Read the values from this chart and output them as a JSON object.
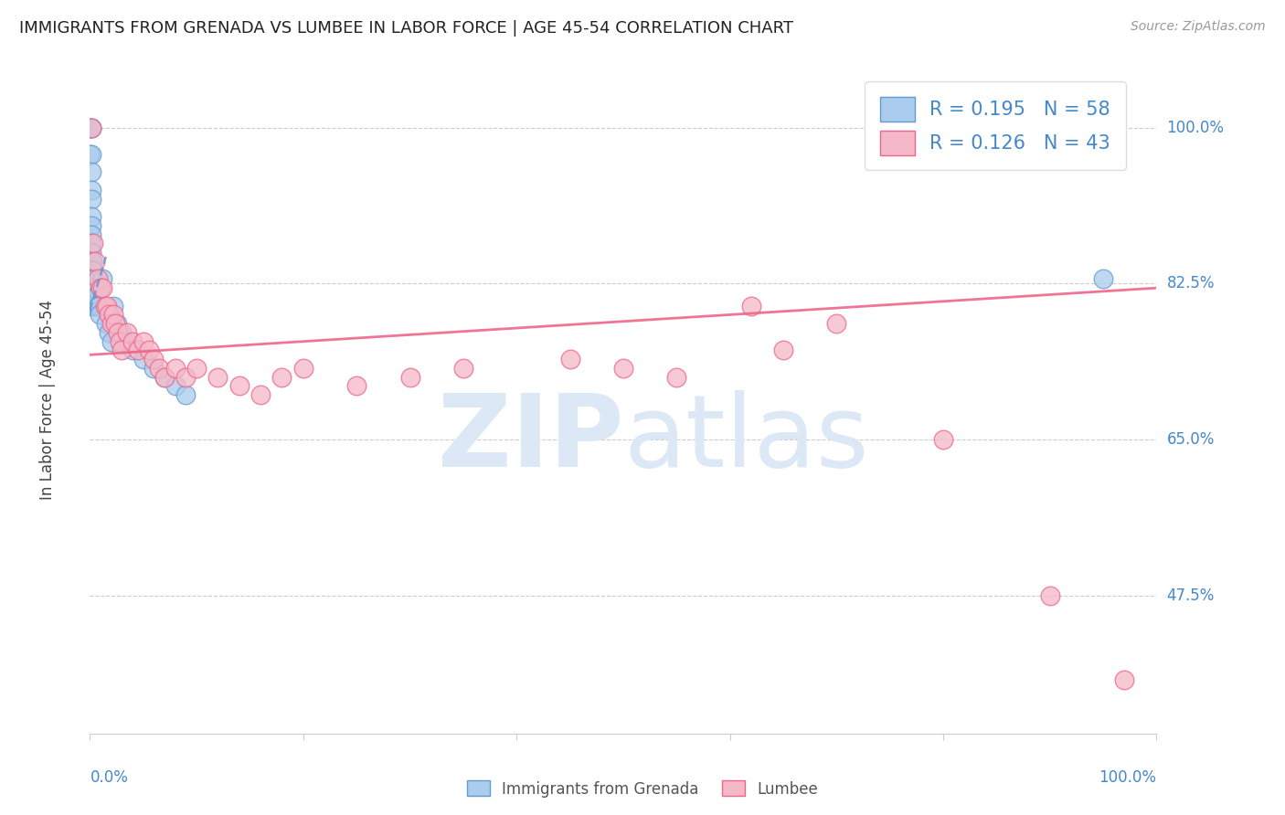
{
  "title": "IMMIGRANTS FROM GRENADA VS LUMBEE IN LABOR FORCE | AGE 45-54 CORRELATION CHART",
  "source": "Source: ZipAtlas.com",
  "ylabel": "In Labor Force | Age 45-54",
  "legend_entries": [
    {
      "label": "R = 0.195   N = 58",
      "color": "#a8c4f0"
    },
    {
      "label": "R = 0.126   N = 43",
      "color": "#f0a0b8"
    }
  ],
  "blue_scatter_x": [
    0.0,
    0.0,
    0.001,
    0.001,
    0.001,
    0.001,
    0.001,
    0.001,
    0.001,
    0.001,
    0.001,
    0.001,
    0.001,
    0.001,
    0.001,
    0.001,
    0.001,
    0.001,
    0.001,
    0.001,
    0.001,
    0.001,
    0.001,
    0.001,
    0.001,
    0.001,
    0.002,
    0.002,
    0.002,
    0.002,
    0.002,
    0.003,
    0.003,
    0.003,
    0.004,
    0.004,
    0.005,
    0.005,
    0.006,
    0.007,
    0.008,
    0.009,
    0.01,
    0.012,
    0.015,
    0.018,
    0.02,
    0.022,
    0.025,
    0.03,
    0.035,
    0.04,
    0.05,
    0.06,
    0.07,
    0.08,
    0.09,
    0.95
  ],
  "blue_scatter_y": [
    1.0,
    0.97,
    1.0,
    1.0,
    0.97,
    0.95,
    0.93,
    0.92,
    0.9,
    0.89,
    0.88,
    0.87,
    0.86,
    0.85,
    0.85,
    0.84,
    0.84,
    0.83,
    0.83,
    0.83,
    0.82,
    0.82,
    0.82,
    0.81,
    0.81,
    0.8,
    0.85,
    0.84,
    0.83,
    0.82,
    0.81,
    0.84,
    0.83,
    0.82,
    0.83,
    0.81,
    0.82,
    0.8,
    0.81,
    0.8,
    0.8,
    0.79,
    0.82,
    0.83,
    0.78,
    0.77,
    0.76,
    0.8,
    0.78,
    0.77,
    0.76,
    0.75,
    0.74,
    0.73,
    0.72,
    0.71,
    0.7,
    0.83
  ],
  "blue_line_x": [
    0.0,
    0.015
  ],
  "blue_line_y": [
    0.795,
    0.855
  ],
  "pink_scatter_x": [
    0.001,
    0.003,
    0.005,
    0.007,
    0.01,
    0.012,
    0.014,
    0.016,
    0.018,
    0.02,
    0.022,
    0.024,
    0.026,
    0.028,
    0.03,
    0.035,
    0.04,
    0.045,
    0.05,
    0.055,
    0.06,
    0.065,
    0.07,
    0.08,
    0.09,
    0.1,
    0.12,
    0.14,
    0.16,
    0.18,
    0.2,
    0.25,
    0.3,
    0.35,
    0.45,
    0.5,
    0.55,
    0.62,
    0.65,
    0.7,
    0.8,
    0.9,
    0.97
  ],
  "pink_scatter_y": [
    1.0,
    0.87,
    0.85,
    0.83,
    0.82,
    0.82,
    0.8,
    0.8,
    0.79,
    0.78,
    0.79,
    0.78,
    0.77,
    0.76,
    0.75,
    0.77,
    0.76,
    0.75,
    0.76,
    0.75,
    0.74,
    0.73,
    0.72,
    0.73,
    0.72,
    0.73,
    0.72,
    0.71,
    0.7,
    0.72,
    0.73,
    0.71,
    0.72,
    0.73,
    0.74,
    0.73,
    0.72,
    0.8,
    0.75,
    0.78,
    0.65,
    0.475,
    0.38
  ],
  "pink_line_x": [
    0.0,
    1.0
  ],
  "pink_line_y": [
    0.745,
    0.82
  ],
  "xlim": [
    0.0,
    1.0
  ],
  "ylim": [
    0.32,
    1.07
  ],
  "ytick_vals": [
    0.475,
    0.65,
    0.825,
    1.0
  ],
  "ytick_labels": [
    "47.5%",
    "65.0%",
    "82.5%",
    "100.0%"
  ],
  "blue_color": "#6699cc",
  "pink_color": "#ee6688",
  "blue_fill": "#aaccee",
  "pink_fill": "#f5b8c8",
  "axis_color": "#4488cc",
  "watermark_color": "#dce8f5",
  "title_fontsize": 13
}
